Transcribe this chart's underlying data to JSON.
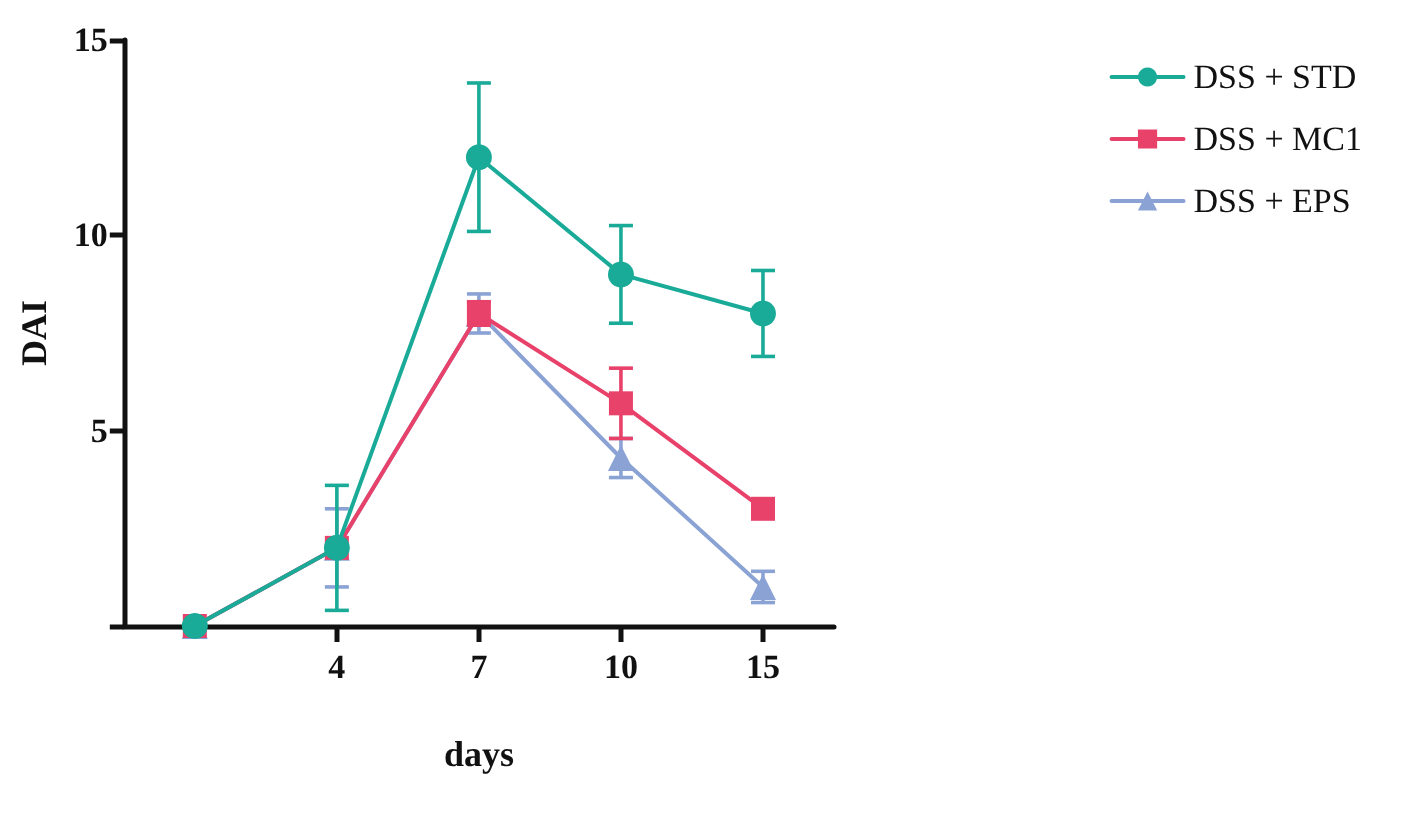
{
  "chart_data": {
    "type": "line",
    "xlabel": "days",
    "ylabel": "DAI",
    "categories": [
      null,
      "4",
      "7",
      "10",
      "15"
    ],
    "ylim": [
      0,
      15
    ],
    "yticks": [
      {
        "value": 0,
        "label": null
      },
      5,
      10,
      15
    ],
    "grid": false,
    "legend": "top right",
    "line_style": "solid",
    "series": [
      {
        "name": "DSS + STD",
        "color": "#1aab98",
        "marker": "circle",
        "values": [
          0,
          2,
          12,
          9,
          8
        ],
        "errors": [
          null,
          1.6,
          1.9,
          1.25,
          1.1
        ]
      },
      {
        "name": "DSS + MC1",
        "color": "#e8416a",
        "marker": "square",
        "values": [
          0,
          2,
          8,
          5.7,
          3
        ],
        "errors": [
          null,
          null,
          0.3,
          0.9,
          null
        ]
      },
      {
        "name": "DSS + EPS",
        "color": "#8aa3d4",
        "marker": "triangle",
        "values": [
          0,
          2,
          8,
          4.3,
          1
        ],
        "errors": [
          null,
          1,
          0.5,
          0.5,
          0.4
        ]
      }
    ]
  }
}
